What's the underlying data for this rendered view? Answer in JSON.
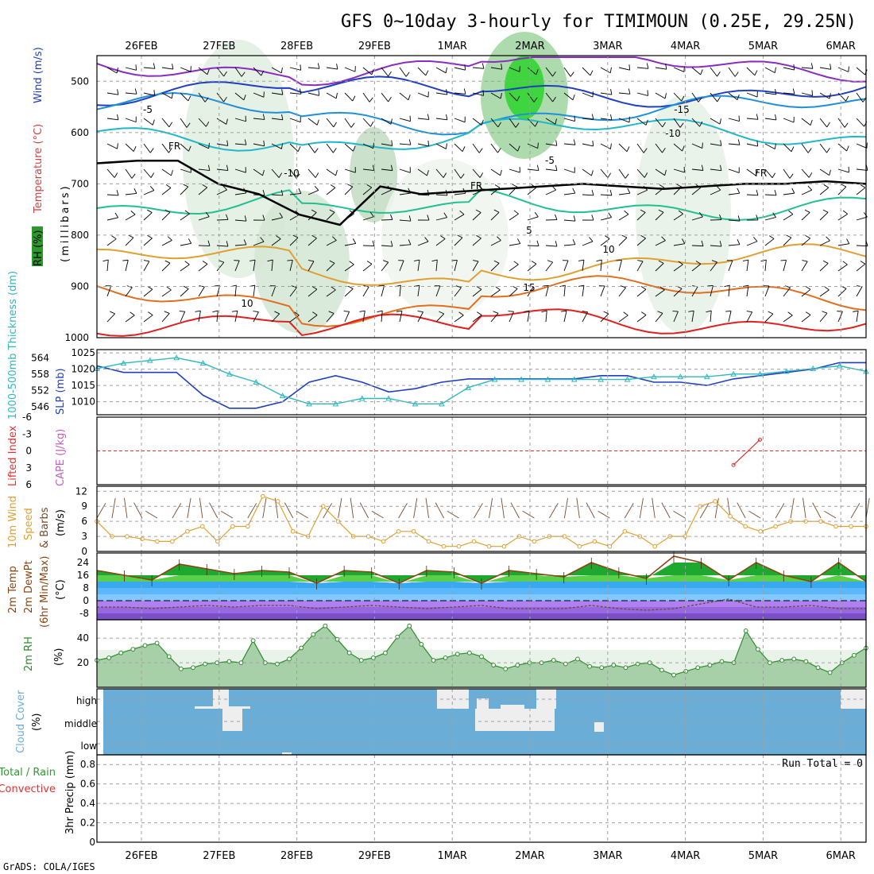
{
  "title": "GFS 0~10day 3-hourly for TIMIMOUN (0.25E, 29.25N)",
  "footer": "GrADS: COLA/IGES",
  "dates": [
    "26FEB",
    "27FEB",
    "28FEB",
    "29FEB",
    "1MAR",
    "2MAR",
    "3MAR",
    "4MAR",
    "5MAR",
    "6MAR"
  ],
  "colors": {
    "slp": "#1f3fbf",
    "thickness": "#2fb8c0",
    "wind_speed": "#e0a030",
    "wind_barb": "#7a4a2a",
    "rh_line": "#2e8b2e",
    "rh_fill": "#cfe5cf",
    "cloud_fill": "#6aaed8",
    "temp_max": "#8b4513",
    "lifted": "#e03030",
    "cape": "#c060c0"
  },
  "labels": {
    "rh": "RH (%)",
    "wind_ms": "Wind (m/s)",
    "temperature": "Temperature (°C)",
    "millibars": "(millibars)",
    "thickness": "1000-500mb Thickness (dm)",
    "slp": "SLP (mb)",
    "lifted": "Lifted Index",
    "cape": "CAPE (J/kg)",
    "wind10": "10m Wind",
    "speed": "Speed",
    "barbs": "& Barbs",
    "ms": "(m/s)",
    "temp2m": "2m Temp",
    "dewpt2m": "2m DewPt",
    "minmax": "(6hr Min/Max)",
    "degc": "(°C)",
    "rh2m": "2m RH",
    "pct": "(%)",
    "cloud": "Cloud Cover",
    "cloud_pct": "(%)",
    "precip": "3hr Precip (mm)",
    "total_rain": "Total / Rain",
    "convective": "Convective",
    "run_total": "Run Total = 0",
    "cloud_levels": [
      "high",
      "middle",
      "low"
    ],
    "fr": "FR"
  },
  "chart_data": [
    {
      "type": "line",
      "title": "Upper air cross-section",
      "ylabel": "(millibars)",
      "yticks": [
        500,
        600,
        700,
        800,
        900,
        1000
      ],
      "contour_labels": [
        "-15",
        "-10",
        "-5",
        "FR",
        "5",
        "10",
        "15"
      ],
      "freezing_level_mb": [
        660,
        655,
        655,
        700,
        720,
        760,
        780,
        705,
        720,
        715,
        710,
        705,
        700,
        705,
        710,
        705,
        700,
        700,
        695,
        700
      ]
    },
    {
      "type": "line",
      "title": "SLP & Thickness",
      "slp_yticks": [
        1010,
        1015,
        1020,
        1025
      ],
      "thickness_yticks": [
        546,
        552,
        558,
        564
      ],
      "series": [
        {
          "name": "SLP (mb)",
          "values": [
            1021,
            1019,
            1019,
            1019,
            1012,
            1008,
            1008,
            1010,
            1016,
            1018,
            1016,
            1013,
            1014,
            1016,
            1017,
            1017,
            1017,
            1017,
            1017,
            1018,
            1018,
            1016,
            1016,
            1015,
            1017,
            1018,
            1019,
            1020,
            1022,
            1022
          ]
        },
        {
          "name": "1000-500mb Thickness (dm)",
          "values": [
            560,
            562,
            563,
            564,
            562,
            558,
            555,
            550,
            547,
            547,
            549,
            549,
            547,
            547,
            553,
            556,
            556,
            556,
            556,
            556,
            556,
            557,
            557,
            557,
            558,
            558,
            559,
            560,
            561,
            559
          ]
        }
      ]
    },
    {
      "type": "line",
      "title": "Lifted Index / CAPE",
      "yticks": [
        -6,
        -3,
        0,
        3,
        6
      ],
      "series": [
        {
          "name": "Lifted Index",
          "values": [
            null,
            null,
            null,
            null,
            null,
            null,
            null,
            null,
            null,
            null,
            null,
            null,
            null,
            null,
            null,
            null,
            null,
            null,
            null,
            null,
            null,
            null,
            null,
            null,
            2.5,
            -2.0,
            null,
            null,
            null,
            null
          ]
        }
      ]
    },
    {
      "type": "line",
      "title": "10m Wind Speed & Barbs",
      "yticks": [
        0,
        3,
        6,
        9,
        12
      ],
      "series": [
        {
          "name": "10m Wind Speed (m/s)",
          "values": [
            6,
            3,
            3,
            2.5,
            2,
            2,
            4,
            5,
            2,
            5,
            5,
            11,
            10,
            4,
            3,
            9,
            6,
            3,
            3,
            2,
            4,
            4,
            2,
            1,
            1,
            2,
            1,
            1,
            3,
            2,
            3,
            3,
            1,
            2,
            1,
            4,
            3,
            1,
            3,
            3,
            9,
            10,
            7,
            5,
            4,
            5,
            6,
            6,
            6,
            5,
            5,
            5
          ]
        }
      ]
    },
    {
      "type": "area",
      "title": "2m Temp / DewPt",
      "yticks": [
        -8,
        0,
        8,
        16,
        24
      ],
      "series": [
        {
          "name": "2m Temp (°C)",
          "values": [
            19,
            16,
            13,
            23,
            20,
            17,
            19,
            18,
            11,
            19,
            18,
            11,
            19,
            18,
            11,
            19,
            17,
            15,
            24,
            18,
            14,
            28,
            24,
            13,
            24,
            16,
            12,
            24,
            12
          ]
        },
        {
          "name": "2m DewPt (°C)",
          "values": [
            -4,
            -4,
            -5,
            -4,
            -3,
            -4,
            -3,
            -3,
            -5,
            -4,
            -3,
            -4,
            -5,
            -4,
            -3,
            -5,
            -5,
            -5,
            -3,
            -5,
            -6,
            -5,
            -2,
            1,
            -4,
            -4,
            -3,
            -5,
            -5
          ]
        }
      ]
    },
    {
      "type": "area",
      "title": "2m RH",
      "yticks": [
        20,
        40
      ],
      "series": [
        {
          "name": "2m RH (%)",
          "values": [
            22,
            24,
            28,
            31,
            34,
            36,
            25,
            15,
            16,
            19,
            20,
            21,
            20,
            38,
            20,
            19,
            23,
            32,
            43,
            50,
            39,
            28,
            22,
            24,
            28,
            41,
            50,
            35,
            22,
            24,
            27,
            28,
            25,
            18,
            15,
            18,
            20,
            20,
            22,
            19,
            23,
            17,
            16,
            18,
            16,
            19,
            20,
            14,
            10,
            13,
            16,
            18,
            21,
            20,
            46,
            31,
            20,
            22,
            23,
            21,
            16,
            12,
            20,
            26,
            32
          ]
        }
      ]
    },
    {
      "type": "heatmap",
      "title": "Cloud Cover",
      "ylabels": [
        "high",
        "middle",
        "low"
      ]
    },
    {
      "type": "bar",
      "title": "3hr Precip (mm)",
      "yticks": [
        0,
        0.2,
        0.4,
        0.6,
        0.8
      ],
      "values": []
    }
  ]
}
